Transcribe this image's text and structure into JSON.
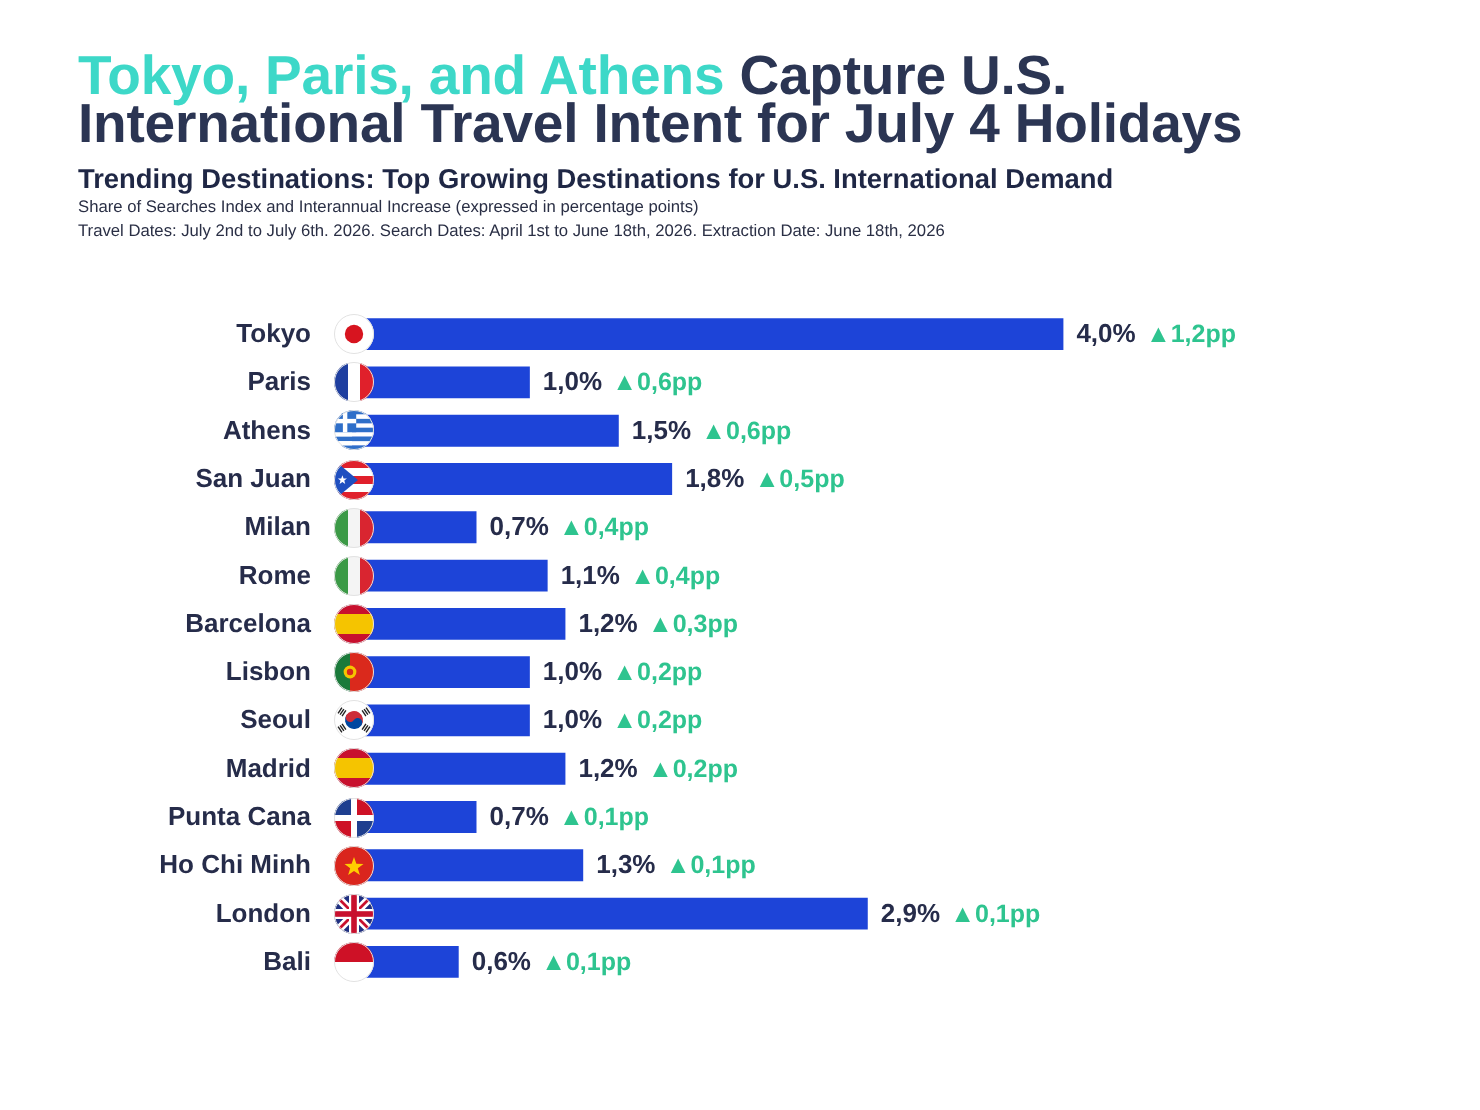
{
  "chart_data": {
    "type": "bar",
    "orientation": "horizontal",
    "title": "Tokyo, Paris, and Athens Capture U.S. International Travel Intent for July 4 Holidays",
    "subtitle": "Trending Destinations: Top Growing Destinations for U.S. International Demand",
    "annotations": [
      "Share of Searches Index and Interannual Increase (expressed in percentage points)",
      "Travel Dates: July 2nd to July 6th. 2026. Search Dates: April 1st to June 18th, 2026. Extraction Date: June 18th, 2026"
    ],
    "categories": [
      "Tokyo",
      "Paris",
      "Athens",
      "San Juan",
      "Milan",
      "Rome",
      "Barcelona",
      "Lisbon",
      "Seoul",
      "Madrid",
      "Punta Cana",
      "Ho Chi Minh",
      "London",
      "Bali"
    ],
    "values": [
      4.0,
      1.0,
      1.5,
      1.8,
      0.7,
      1.1,
      1.2,
      1.0,
      1.0,
      1.2,
      0.7,
      1.3,
      2.9,
      0.6
    ],
    "value_labels": [
      "4,0% ▲1,2pp",
      "1,0% ▲0,6pp",
      "1,5% ▲0,6pp",
      "1,8% ▲0,5pp",
      "0,7% ▲0,4pp",
      "1,1% ▲0,4pp",
      "1,2% ▲0,3pp",
      "1,0% ▲0,2pp",
      "1,0% ▲0,2pp",
      "1,2% ▲0,2pp",
      "0,7% ▲0,1pp",
      "1,3% ▲0,1pp",
      "2,9% ▲0,1pp",
      "0,6% ▲0,1pp"
    ],
    "color": "#1d44d8",
    "tick_labels": "y"
  }
}
